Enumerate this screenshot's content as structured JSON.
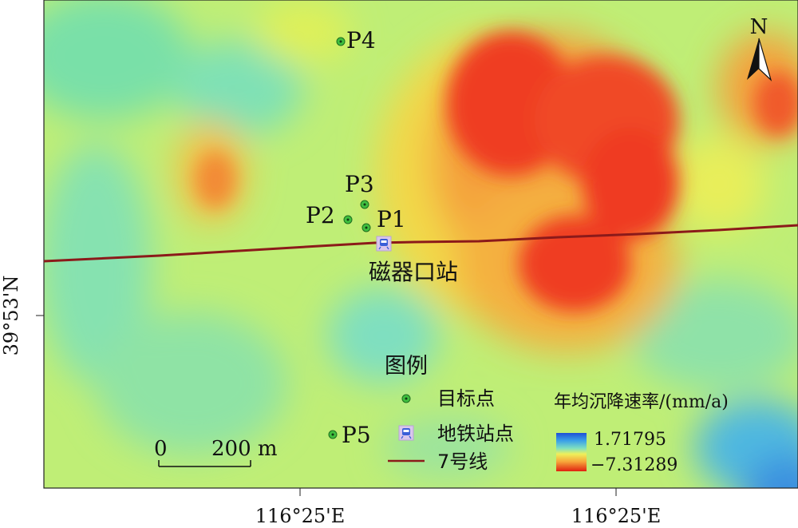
{
  "north_arrow": {
    "label": "N"
  },
  "axes": {
    "y_label": "39°53'N",
    "x_labels": [
      "116°25'E",
      "116°25'E"
    ]
  },
  "points": [
    {
      "id": "P1",
      "label": "P1"
    },
    {
      "id": "P2",
      "label": "P2"
    },
    {
      "id": "P3",
      "label": "P3"
    },
    {
      "id": "P4",
      "label": "P4"
    },
    {
      "id": "P5",
      "label": "P5"
    }
  ],
  "station": {
    "label": "磁器口站"
  },
  "legend": {
    "title": "图例",
    "items": [
      {
        "label": "目标点",
        "icon": "target-point-icon"
      },
      {
        "label": "地铁站点",
        "icon": "subway-station-icon"
      },
      {
        "label": "7号线",
        "icon": "line-7-icon"
      }
    ]
  },
  "scale_bar": {
    "start_label": "0",
    "end_label": "200 m"
  },
  "color_ramp": {
    "title": "年均沉降速率/(mm/a)",
    "max_label": "1.71795",
    "min_label": "−7.31289",
    "colors": [
      "#1f4fd6",
      "#3aa0e8",
      "#4fd2d4",
      "#9ae596",
      "#eef05a",
      "#f7a53a",
      "#ef4423",
      "#e02010"
    ]
  },
  "line_color": "#8b1a1a",
  "target_color": "#3fbf3f"
}
